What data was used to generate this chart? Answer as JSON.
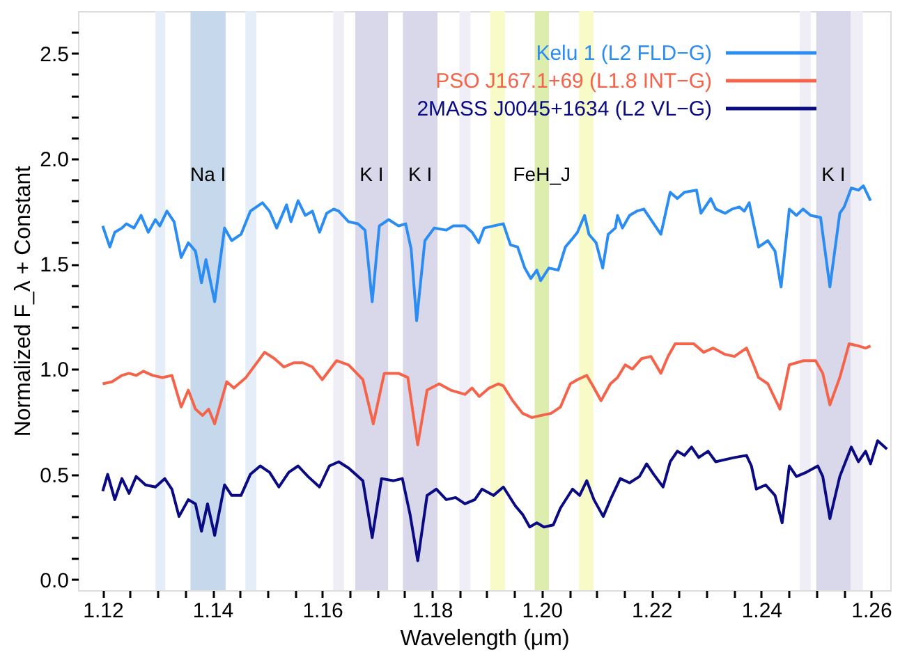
{
  "chart_data": {
    "type": "line",
    "xlabel": "Wavelength (μm)",
    "ylabel": "Normalized F_λ + Constant",
    "xlim": [
      1.1155,
      1.2635
    ],
    "ylim": [
      -0.05,
      2.7
    ],
    "xticks": [
      {
        "value": 1.12,
        "label": "1.12"
      },
      {
        "value": 1.125,
        "label": null
      },
      {
        "value": 1.13,
        "label": null
      },
      {
        "value": 1.135,
        "label": null
      },
      {
        "value": 1.14,
        "label": "1.14"
      },
      {
        "value": 1.145,
        "label": null
      },
      {
        "value": 1.15,
        "label": null
      },
      {
        "value": 1.155,
        "label": null
      },
      {
        "value": 1.16,
        "label": "1.16"
      },
      {
        "value": 1.165,
        "label": null
      },
      {
        "value": 1.17,
        "label": null
      },
      {
        "value": 1.175,
        "label": null
      },
      {
        "value": 1.18,
        "label": "1.18"
      },
      {
        "value": 1.185,
        "label": null
      },
      {
        "value": 1.19,
        "label": null
      },
      {
        "value": 1.195,
        "label": null
      },
      {
        "value": 1.2,
        "label": "1.20"
      },
      {
        "value": 1.205,
        "label": null
      },
      {
        "value": 1.21,
        "label": null
      },
      {
        "value": 1.215,
        "label": null
      },
      {
        "value": 1.22,
        "label": "1.22"
      },
      {
        "value": 1.225,
        "label": null
      },
      {
        "value": 1.23,
        "label": null
      },
      {
        "value": 1.235,
        "label": null
      },
      {
        "value": 1.24,
        "label": "1.24"
      },
      {
        "value": 1.245,
        "label": null
      },
      {
        "value": 1.25,
        "label": null
      },
      {
        "value": 1.255,
        "label": null
      },
      {
        "value": 1.26,
        "label": "1.26"
      }
    ],
    "yticks": [
      {
        "value": 0,
        "label": "0.0"
      },
      {
        "value": 0.1,
        "label": null
      },
      {
        "value": 0.2,
        "label": null
      },
      {
        "value": 0.3,
        "label": null
      },
      {
        "value": 0.4,
        "label": null
      },
      {
        "value": 0.5,
        "label": "0.5"
      },
      {
        "value": 0.6,
        "label": null
      },
      {
        "value": 0.7,
        "label": null
      },
      {
        "value": 0.8,
        "label": null
      },
      {
        "value": 0.9,
        "label": null
      },
      {
        "value": 1,
        "label": "1.0"
      },
      {
        "value": 1.1,
        "label": null
      },
      {
        "value": 1.2,
        "label": null
      },
      {
        "value": 1.3,
        "label": null
      },
      {
        "value": 1.4,
        "label": null
      },
      {
        "value": 1.5,
        "label": "1.5"
      },
      {
        "value": 1.6,
        "label": null
      },
      {
        "value": 1.7,
        "label": null
      },
      {
        "value": 1.8,
        "label": null
      },
      {
        "value": 1.9,
        "label": null
      },
      {
        "value": 2,
        "label": "2.0"
      },
      {
        "value": 2.1,
        "label": null
      },
      {
        "value": 2.2,
        "label": null
      },
      {
        "value": 2.3,
        "label": null
      },
      {
        "value": 2.4,
        "label": null
      },
      {
        "value": 2.5,
        "label": "2.5"
      },
      {
        "value": 2.6,
        "label": null
      }
    ],
    "grid": false,
    "legend": "top right",
    "marker": "none",
    "line_style": "solid",
    "bands": [
      {
        "axis": "x",
        "from": 1.1296,
        "to": 1.1314,
        "color": "#e4edf8"
      },
      {
        "axis": "x",
        "from": 1.136,
        "to": 1.1424,
        "color": "#c6d9ec",
        "label": "Na I"
      },
      {
        "axis": "x",
        "from": 1.146,
        "to": 1.148,
        "color": "#e4edf8"
      },
      {
        "axis": "x",
        "from": 1.162,
        "to": 1.164,
        "color": "#efedf5"
      },
      {
        "axis": "x",
        "from": 1.166,
        "to": 1.172,
        "color": "#d9d8ea",
        "label": "K I"
      },
      {
        "axis": "x",
        "from": 1.1747,
        "to": 1.181,
        "color": "#d9d8ea",
        "label": "K I"
      },
      {
        "axis": "x",
        "from": 1.185,
        "to": 1.187,
        "color": "#efedf5"
      },
      {
        "axis": "x",
        "from": 1.1906,
        "to": 1.1933,
        "color": "#f8fbc8"
      },
      {
        "axis": "x",
        "from": 1.1987,
        "to": 1.2013,
        "color": "#dcedae",
        "label": "FeH_J"
      },
      {
        "axis": "x",
        "from": 1.2068,
        "to": 1.2094,
        "color": "#f8fbc8"
      },
      {
        "axis": "x",
        "from": 1.247,
        "to": 1.249,
        "color": "#efedf5"
      },
      {
        "axis": "x",
        "from": 1.25,
        "to": 1.2563,
        "color": "#d9d8ea",
        "label": "K I"
      },
      {
        "axis": "x",
        "from": 1.2563,
        "to": 1.2585,
        "color": "#efedf5"
      }
    ],
    "series": [
      {
        "name": "Kelu 1 (L2 FLD−G)",
        "color": "#2b8cf2",
        "x": [
          1.12,
          1.1213,
          1.1222,
          1.1235,
          1.1243,
          1.1257,
          1.127,
          1.1283,
          1.1296,
          1.1304,
          1.1317,
          1.133,
          1.1343,
          1.1356,
          1.1369,
          1.138,
          1.1388,
          1.1404,
          1.1422,
          1.1435,
          1.1452,
          1.1469,
          1.1491,
          1.1504,
          1.1517,
          1.1535,
          1.1543,
          1.1556,
          1.1569,
          1.1582,
          1.1595,
          1.1608,
          1.1621,
          1.163,
          1.1648,
          1.1665,
          1.1678,
          1.1691,
          1.1704,
          1.1721,
          1.1739,
          1.1752,
          1.1762,
          1.1772,
          1.1787,
          1.1804,
          1.1826,
          1.1839,
          1.186,
          1.1873,
          1.1885,
          1.1895,
          1.1912,
          1.193,
          1.1943,
          1.1956,
          1.1969,
          1.198,
          1.1991,
          1.1998,
          1.2013,
          1.203,
          1.2043,
          1.2056,
          1.2065,
          1.2078,
          1.2086,
          1.2099,
          1.2111,
          1.2121,
          1.2134,
          1.2138,
          1.2147,
          1.216,
          1.2173,
          1.2186,
          1.2199,
          1.2217,
          1.2234,
          1.2247,
          1.226,
          1.2282,
          1.229,
          1.2308,
          1.2317,
          1.2334,
          1.2347,
          1.236,
          1.2369,
          1.2378,
          1.2386,
          1.2395,
          1.2412,
          1.2425,
          1.2436,
          1.2451,
          1.2464,
          1.2476,
          1.249,
          1.2508,
          1.2525,
          1.2543,
          1.2551,
          1.2564,
          1.2577,
          1.2586,
          1.2599
        ],
        "values": [
          1.68,
          1.58,
          1.65,
          1.67,
          1.69,
          1.67,
          1.73,
          1.65,
          1.71,
          1.68,
          1.75,
          1.7,
          1.53,
          1.6,
          1.56,
          1.41,
          1.52,
          1.32,
          1.67,
          1.61,
          1.64,
          1.75,
          1.79,
          1.75,
          1.67,
          1.78,
          1.7,
          1.8,
          1.73,
          1.75,
          1.65,
          1.74,
          1.76,
          1.75,
          1.7,
          1.69,
          1.66,
          1.32,
          1.68,
          1.71,
          1.68,
          1.69,
          1.57,
          1.23,
          1.61,
          1.67,
          1.66,
          1.68,
          1.68,
          1.65,
          1.6,
          1.67,
          1.68,
          1.69,
          1.59,
          1.58,
          1.48,
          1.43,
          1.47,
          1.42,
          1.48,
          1.47,
          1.58,
          1.62,
          1.65,
          1.73,
          1.64,
          1.6,
          1.48,
          1.64,
          1.67,
          1.73,
          1.67,
          1.73,
          1.75,
          1.76,
          1.71,
          1.64,
          1.84,
          1.81,
          1.84,
          1.85,
          1.74,
          1.81,
          1.76,
          1.74,
          1.76,
          1.77,
          1.75,
          1.79,
          1.69,
          1.58,
          1.61,
          1.56,
          1.39,
          1.76,
          1.73,
          1.76,
          1.73,
          1.72,
          1.39,
          1.74,
          1.77,
          1.86,
          1.85,
          1.87,
          1.8
        ]
      },
      {
        "name": "PSO J167.1+69 (L1.8 INT−G)",
        "color": "#f4644a",
        "x": [
          1.12,
          1.1217,
          1.1235,
          1.1248,
          1.1261,
          1.1274,
          1.1291,
          1.1309,
          1.1326,
          1.1343,
          1.1356,
          1.1369,
          1.1382,
          1.1393,
          1.1404,
          1.1426,
          1.1439,
          1.1461,
          1.1495,
          1.1513,
          1.153,
          1.1548,
          1.1565,
          1.1582,
          1.16,
          1.1626,
          1.1648,
          1.1674,
          1.1693,
          1.1713,
          1.1739,
          1.1756,
          1.1774,
          1.1791,
          1.1813,
          1.1834,
          1.186,
          1.1873,
          1.1886,
          1.1904,
          1.1921,
          1.193,
          1.1947,
          1.1965,
          1.1982,
          1.1999,
          1.2017,
          1.2034,
          1.2052,
          1.2065,
          1.2082,
          1.2091,
          1.2108,
          1.2125,
          1.2138,
          1.2152,
          1.2165,
          1.2182,
          1.2199,
          1.2217,
          1.223,
          1.2243,
          1.2277,
          1.2295,
          1.2312,
          1.2334,
          1.2351,
          1.2373,
          1.2386,
          1.2395,
          1.2412,
          1.2434,
          1.2451,
          1.2477,
          1.2499,
          1.2512,
          1.2525,
          1.2543,
          1.256,
          1.2577,
          1.259,
          1.2599
        ],
        "values": [
          0.93,
          0.94,
          0.97,
          0.98,
          0.97,
          0.99,
          0.97,
          0.96,
          0.97,
          0.82,
          0.9,
          0.81,
          0.78,
          0.81,
          0.74,
          0.94,
          0.91,
          0.96,
          1.08,
          1.05,
          1.01,
          1.03,
          1.03,
          1.01,
          0.95,
          1.04,
          1.02,
          0.95,
          0.74,
          0.98,
          0.98,
          0.96,
          0.64,
          0.9,
          0.93,
          0.9,
          0.88,
          0.91,
          0.87,
          0.91,
          0.93,
          0.92,
          0.85,
          0.79,
          0.77,
          0.78,
          0.79,
          0.82,
          0.93,
          0.95,
          0.97,
          0.93,
          0.85,
          0.93,
          0.96,
          1.02,
          1.0,
          1.05,
          1.06,
          0.98,
          1.06,
          1.12,
          1.12,
          1.08,
          1.1,
          1.07,
          1.06,
          1.1,
          1.02,
          0.96,
          0.93,
          0.81,
          1.02,
          1.04,
          1.04,
          0.98,
          0.83,
          0.96,
          1.12,
          1.11,
          1.1,
          1.11
        ]
      },
      {
        "name": "2MASS J0045+1634 (L2 VL−G)",
        "color": "#0a0a82",
        "x": [
          1.12,
          1.1209,
          1.1222,
          1.1235,
          1.1248,
          1.1261,
          1.1278,
          1.1296,
          1.1313,
          1.1326,
          1.1339,
          1.1356,
          1.1369,
          1.138,
          1.1391,
          1.1404,
          1.1422,
          1.1435,
          1.1452,
          1.1469,
          1.1487,
          1.1504,
          1.1521,
          1.1539,
          1.1556,
          1.1574,
          1.1595,
          1.1613,
          1.163,
          1.1648,
          1.1674,
          1.1691,
          1.1708,
          1.173,
          1.1746,
          1.176,
          1.1774,
          1.1791,
          1.1808,
          1.1826,
          1.1843,
          1.186,
          1.1878,
          1.1891,
          1.1912,
          1.193,
          1.1952,
          1.1965,
          1.1978,
          1.1991,
          1.2004,
          1.2021,
          1.2034,
          1.2056,
          1.2069,
          1.2082,
          1.2095,
          1.2112,
          1.2125,
          1.2143,
          1.216,
          1.2178,
          1.2191,
          1.2204,
          1.2221,
          1.2234,
          1.2247,
          1.226,
          1.2273,
          1.2286,
          1.2303,
          1.2317,
          1.2334,
          1.2351,
          1.2373,
          1.2382,
          1.2391,
          1.2408,
          1.2425,
          1.2438,
          1.2451,
          1.2464,
          1.2482,
          1.2503,
          1.2512,
          1.2525,
          1.2543,
          1.2564,
          1.2577,
          1.259,
          1.2599,
          1.2612,
          1.2629
        ],
        "values": [
          0.42,
          0.5,
          0.38,
          0.48,
          0.41,
          0.49,
          0.45,
          0.44,
          0.48,
          0.43,
          0.3,
          0.38,
          0.36,
          0.23,
          0.36,
          0.21,
          0.45,
          0.4,
          0.4,
          0.5,
          0.54,
          0.51,
          0.44,
          0.51,
          0.54,
          0.49,
          0.44,
          0.54,
          0.56,
          0.53,
          0.47,
          0.2,
          0.48,
          0.47,
          0.48,
          0.31,
          0.09,
          0.4,
          0.43,
          0.38,
          0.39,
          0.36,
          0.38,
          0.43,
          0.4,
          0.44,
          0.35,
          0.31,
          0.25,
          0.27,
          0.25,
          0.26,
          0.34,
          0.43,
          0.4,
          0.47,
          0.38,
          0.3,
          0.38,
          0.48,
          0.46,
          0.49,
          0.55,
          0.5,
          0.44,
          0.56,
          0.61,
          0.59,
          0.63,
          0.58,
          0.61,
          0.56,
          0.57,
          0.58,
          0.59,
          0.54,
          0.43,
          0.45,
          0.4,
          0.27,
          0.54,
          0.49,
          0.51,
          0.54,
          0.49,
          0.29,
          0.49,
          0.63,
          0.56,
          0.61,
          0.55,
          0.66,
          0.62
        ]
      }
    ]
  }
}
